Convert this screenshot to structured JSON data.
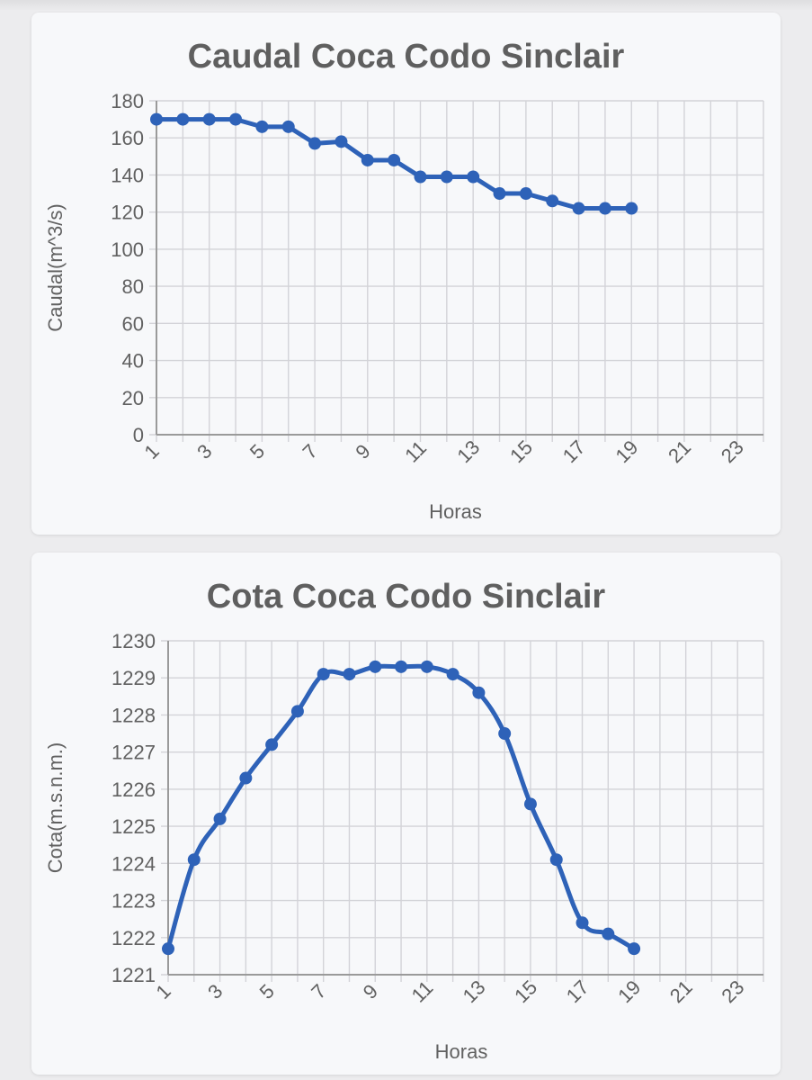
{
  "colors": {
    "line": "#2e62b8",
    "grid": "#d3d3d8",
    "axis": "#9a9a9a",
    "text": "#616161"
  },
  "charts": [
    {
      "type": "line",
      "title": "Caudal Coca Codo Sinclair",
      "xlabel": "Horas",
      "ylabel": "Caudal(m^3/s)",
      "x": [
        1,
        2,
        3,
        4,
        5,
        6,
        7,
        8,
        9,
        10,
        11,
        12,
        13,
        14,
        15,
        16,
        17,
        18,
        19
      ],
      "values": [
        170,
        170,
        170,
        170,
        166,
        166,
        157,
        158,
        148,
        148,
        139,
        139,
        139,
        130,
        130,
        126,
        122,
        122,
        122
      ],
      "xlim": [
        1,
        24
      ],
      "ylim": [
        0,
        180
      ],
      "yticks": [
        0,
        20,
        40,
        60,
        80,
        100,
        120,
        140,
        160,
        180
      ],
      "xticks": [
        1,
        3,
        5,
        7,
        9,
        11,
        13,
        15,
        17,
        19,
        21,
        23
      ],
      "smooth": false
    },
    {
      "type": "line",
      "title": "Cota Coca Codo Sinclair",
      "xlabel": "Horas",
      "ylabel": "Cota(m.s.n.m.)",
      "x": [
        1,
        2,
        3,
        4,
        5,
        6,
        7,
        8,
        9,
        10,
        11,
        12,
        13,
        14,
        15,
        16,
        17,
        18,
        19
      ],
      "values": [
        1221.7,
        1224.1,
        1225.2,
        1226.3,
        1227.2,
        1228.1,
        1229.1,
        1229.1,
        1229.3,
        1229.3,
        1229.3,
        1229.1,
        1228.6,
        1227.5,
        1225.6,
        1224.1,
        1222.4,
        1222.1,
        1221.7
      ],
      "xlim": [
        1,
        24
      ],
      "ylim": [
        1221,
        1230
      ],
      "yticks": [
        1221,
        1222,
        1223,
        1224,
        1225,
        1226,
        1227,
        1228,
        1229,
        1230
      ],
      "xticks": [
        1,
        3,
        5,
        7,
        9,
        11,
        13,
        15,
        17,
        19,
        21,
        23
      ],
      "smooth": true
    }
  ]
}
